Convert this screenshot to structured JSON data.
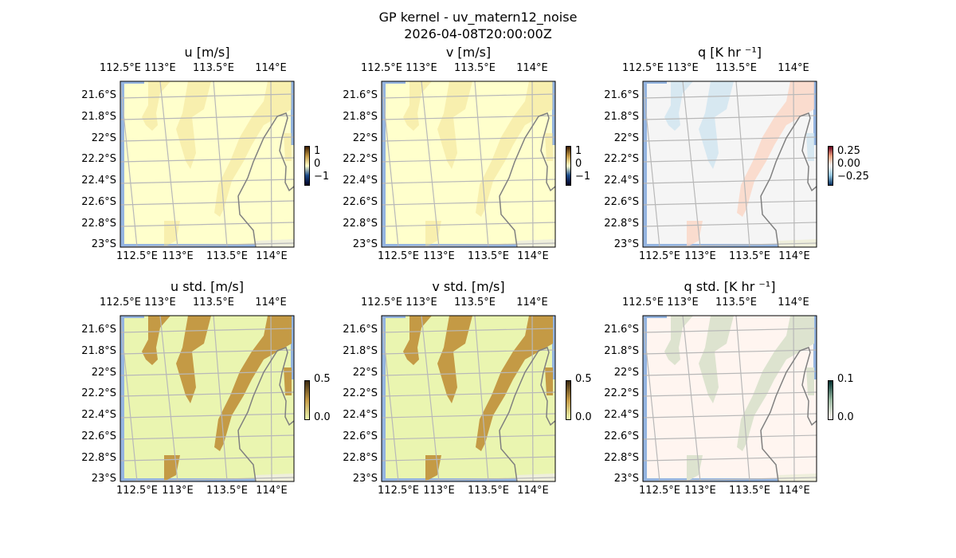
{
  "figure": {
    "title": "GP kernel - uv_matern12_noise",
    "timestamp": "2026-04-08T20:00:00Z"
  },
  "axes": {
    "lat_labels": [
      "21.6°S",
      "21.8°S",
      "22°S",
      "22.2°S",
      "22.4°S",
      "22.6°S",
      "22.8°S",
      "23°S"
    ],
    "lon_labels": [
      "112.5°E",
      "113°E",
      "113.5°E",
      "114°E"
    ]
  },
  "panels": [
    {
      "title": "u [m/s]",
      "kind": "mean",
      "colorbar": {
        "ticks": [
          "1",
          "0",
          "−1"
        ],
        "colors": [
          "#3b1d00",
          "#c49a45",
          "#ffffcc",
          "#1a4a8a",
          "#000022"
        ]
      }
    },
    {
      "title": "v [m/s]",
      "kind": "mean",
      "colorbar": {
        "ticks": [
          "1",
          "0",
          "−1"
        ],
        "colors": [
          "#3b1d00",
          "#c49a45",
          "#ffffcc",
          "#1a4a8a",
          "#000022"
        ]
      }
    },
    {
      "title": "q [K hr ⁻¹]",
      "kind": "q",
      "colorbar": {
        "ticks": [
          "0.25",
          "0.00",
          "−0.25"
        ],
        "colors": [
          "#67001f",
          "#f4a582",
          "#f7f7f7",
          "#92c5de",
          "#053061"
        ]
      }
    },
    {
      "title": "u std. [m/s]",
      "kind": "std",
      "colorbar": {
        "ticks": [
          "0.5",
          "0.0"
        ],
        "colors": [
          "#3b2a10",
          "#c49a45",
          "#eaf5b0"
        ]
      }
    },
    {
      "title": "v std. [m/s]",
      "kind": "std",
      "colorbar": {
        "ticks": [
          "0.5",
          "0.0"
        ],
        "colors": [
          "#3b2a10",
          "#c49a45",
          "#eaf5b0"
        ]
      }
    },
    {
      "title": "q std. [K hr ⁻¹]",
      "kind": "qstd",
      "colorbar": {
        "ticks": [
          "0.1",
          "0.0"
        ],
        "colors": [
          "#003030",
          "#99b8a0",
          "#fff5f0"
        ]
      }
    }
  ]
}
